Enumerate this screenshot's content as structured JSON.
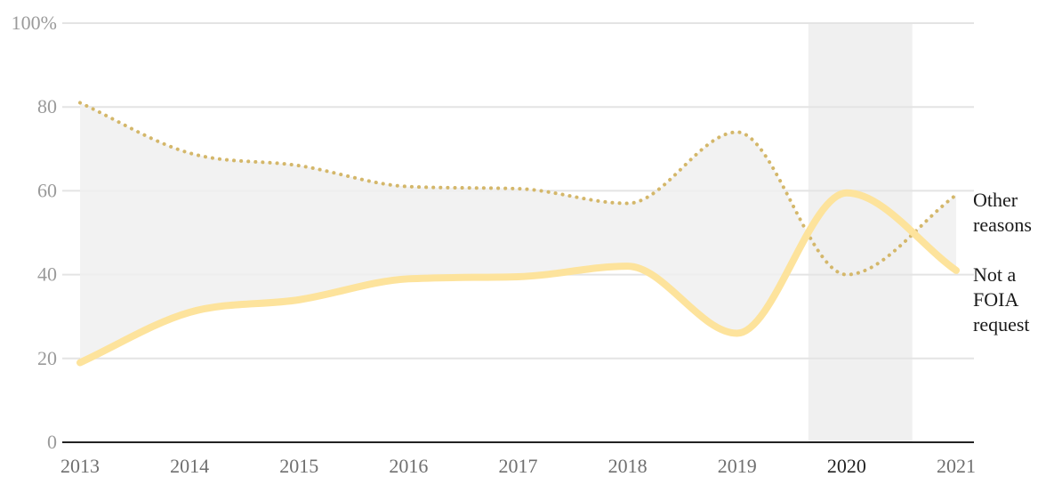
{
  "chart_data": {
    "type": "line",
    "x": [
      "2013",
      "2014",
      "2015",
      "2016",
      "2017",
      "2018",
      "2019",
      "2020",
      "2021"
    ],
    "highlight_x": "2020",
    "ylim": [
      0,
      100
    ],
    "yticks": [
      {
        "value": 0,
        "label": "0"
      },
      {
        "value": 20,
        "label": "20"
      },
      {
        "value": 40,
        "label": "40"
      },
      {
        "value": 60,
        "label": "60"
      },
      {
        "value": 80,
        "label": "80"
      },
      {
        "value": 100,
        "label": "100%"
      }
    ],
    "grid": true,
    "fill_between_series": true,
    "series": [
      {
        "name": "Other reasons",
        "label_lines": [
          "Other",
          "reasons"
        ],
        "style": "dotted",
        "color": "#d4b76a",
        "values": [
          81,
          69,
          66,
          61,
          60.5,
          57,
          74,
          40,
          59
        ]
      },
      {
        "name": "Not a FOIA request",
        "label_lines": [
          "Not a",
          "FOIA",
          "request"
        ],
        "style": "solid",
        "color": "#fde39c",
        "values": [
          19,
          31,
          34,
          39,
          39.5,
          42,
          26,
          59.5,
          41
        ]
      }
    ],
    "colors": {
      "fill": "#f0f0f0",
      "highlight_band": "#f0f0f0",
      "grid": "#e4e4e4",
      "axis": "#222222"
    }
  }
}
